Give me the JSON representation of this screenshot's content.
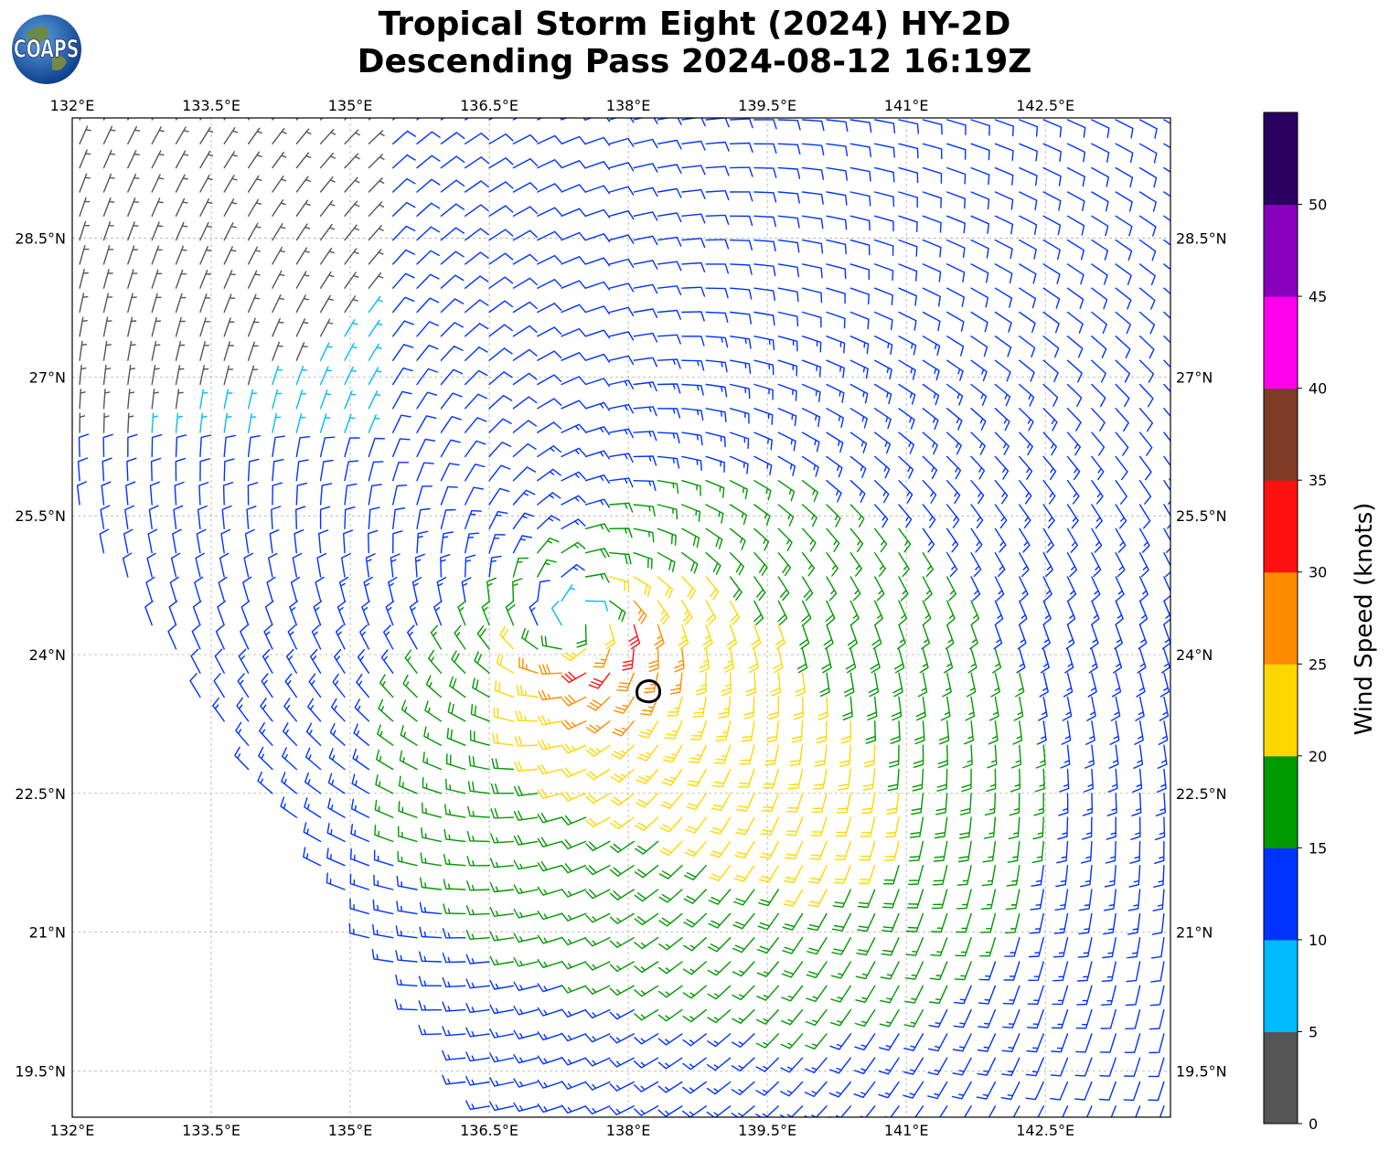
{
  "title": {
    "line1": "Tropical Storm Eight (2024) HY-2D",
    "line2": "Descending Pass 2024-08-12 16:19Z"
  },
  "logo": {
    "text": "COAPS",
    "icon": "globe-logo-icon"
  },
  "map": {
    "lon_ticks": [
      "132°E",
      "133.5°E",
      "135°E",
      "136.5°E",
      "138°E",
      "139.5°E",
      "141°E",
      "142.5°E"
    ],
    "lat_ticks": [
      "28.5°N",
      "27°N",
      "25.5°N",
      "24°N",
      "22.5°N",
      "21°N",
      "19.5°N"
    ],
    "lon_range": [
      132,
      143.85
    ],
    "lat_range": [
      19.0,
      29.8
    ],
    "storm_center": {
      "lon": 137.45,
      "lat": 24.35
    },
    "storm_marker": {
      "lon": 138.2,
      "lat": 23.6
    },
    "gridlines": true
  },
  "colorbar": {
    "label": "Wind Speed (knots)",
    "ticks": [
      "0",
      "5",
      "10",
      "15",
      "20",
      "25",
      "30",
      "35",
      "40",
      "45",
      "50"
    ],
    "colors": [
      "#555555",
      "#00bbff",
      "#0033ff",
      "#009900",
      "#ffd700",
      "#ff8c00",
      "#ff1111",
      "#7e3c26",
      "#ff00ee",
      "#8800bb",
      "#2a0060"
    ],
    "bounds": [
      0,
      55
    ]
  }
}
